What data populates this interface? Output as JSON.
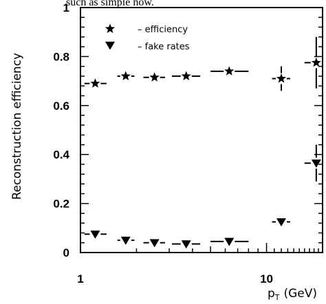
{
  "page_text": {
    "caption_fragment": "such as simple now."
  },
  "chart_data": {
    "type": "scatter",
    "title": "",
    "xlabel": "p",
    "xlabel_sub": "T",
    "xlabel_unit": "(GeV)",
    "ylabel": "Reconstruction efficiency",
    "xscale": "log",
    "xlim": [
      1,
      20
    ],
    "ylim": [
      0,
      1
    ],
    "x_ticks": [
      {
        "value": 1,
        "label": "1"
      },
      {
        "value": 10,
        "label": "10"
      }
    ],
    "y_ticks": [
      {
        "value": 0,
        "label": "0"
      },
      {
        "value": 0.2,
        "label": "0.2"
      },
      {
        "value": 0.4,
        "label": "0.4"
      },
      {
        "value": 0.6,
        "label": "0.6"
      },
      {
        "value": 0.8,
        "label": "0.8"
      },
      {
        "value": 1,
        "label": "1"
      }
    ],
    "legend": {
      "placement": "top-left",
      "entries": [
        {
          "series": "efficiency",
          "label": "– efficiency"
        },
        {
          "series": "fake",
          "label": "– fake rates"
        }
      ]
    },
    "series": [
      {
        "key": "efficiency",
        "marker": "star",
        "points": [
          {
            "x": 1.2,
            "y": 0.69,
            "xlo": 1.05,
            "xhi": 1.38,
            "ylo": 0.68,
            "yhi": 0.7
          },
          {
            "x": 1.75,
            "y": 0.72,
            "xlo": 1.58,
            "xhi": 1.95,
            "ylo": 0.71,
            "yhi": 0.73
          },
          {
            "x": 2.5,
            "y": 0.715,
            "xlo": 2.18,
            "xhi": 2.85,
            "ylo": 0.705,
            "yhi": 0.725
          },
          {
            "x": 3.7,
            "y": 0.72,
            "xlo": 3.1,
            "xhi": 4.4,
            "ylo": 0.71,
            "yhi": 0.73
          },
          {
            "x": 6.3,
            "y": 0.74,
            "xlo": 5.0,
            "xhi": 8.0,
            "ylo": 0.73,
            "yhi": 0.75
          },
          {
            "x": 12,
            "y": 0.71,
            "xlo": 10.7,
            "xhi": 13.4,
            "ylo": 0.66,
            "yhi": 0.76
          },
          {
            "x": 18.5,
            "y": 0.775,
            "xlo": 16.0,
            "xhi": 20.0,
            "ylo": 0.67,
            "yhi": 0.88
          }
        ]
      },
      {
        "key": "fake",
        "marker": "triangle-down",
        "points": [
          {
            "x": 1.2,
            "y": 0.075,
            "xlo": 1.05,
            "xhi": 1.38,
            "ylo": 0.07,
            "yhi": 0.08
          },
          {
            "x": 1.75,
            "y": 0.05,
            "xlo": 1.58,
            "xhi": 1.95,
            "ylo": 0.045,
            "yhi": 0.055
          },
          {
            "x": 2.5,
            "y": 0.04,
            "xlo": 2.18,
            "xhi": 2.85,
            "ylo": 0.035,
            "yhi": 0.045
          },
          {
            "x": 3.7,
            "y": 0.035,
            "xlo": 3.1,
            "xhi": 4.4,
            "ylo": 0.03,
            "yhi": 0.04
          },
          {
            "x": 6.3,
            "y": 0.045,
            "xlo": 5.0,
            "xhi": 8.0,
            "ylo": 0.04,
            "yhi": 0.05
          },
          {
            "x": 12,
            "y": 0.125,
            "xlo": 10.7,
            "xhi": 13.4,
            "ylo": 0.12,
            "yhi": 0.13
          },
          {
            "x": 18.5,
            "y": 0.365,
            "xlo": 16.0,
            "xhi": 20.0,
            "ylo": 0.29,
            "yhi": 0.44
          }
        ]
      }
    ]
  }
}
